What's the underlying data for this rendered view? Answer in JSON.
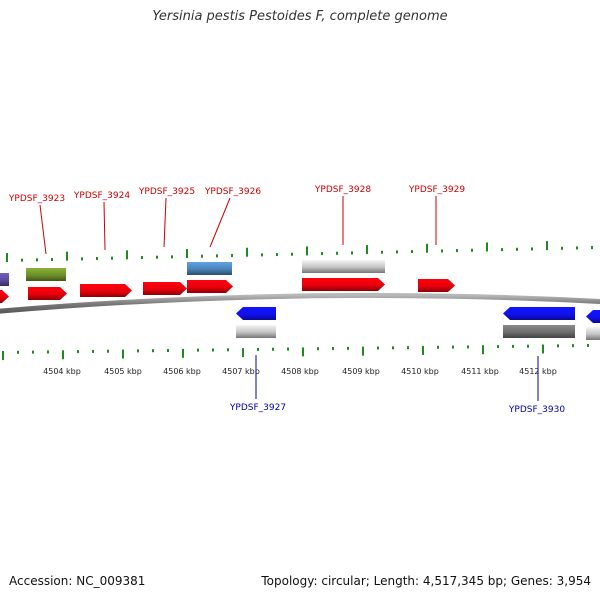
{
  "title": "Yersinia pestis Pestoides F, complete genome",
  "footer": {
    "accession": "Accession: NC_009381",
    "topology": "Topology: circular; Length: 4,517,345 bp; Genes: 3,954"
  },
  "colors": {
    "red_gene": "#e8000b",
    "blue_gene": "#1010ee",
    "gray_gene": "#c4c4c4",
    "dark_gray_gene": "#6e6e6e",
    "green_gene": "#6e8f2a",
    "steelblue_gene": "#4b82b8",
    "purple_gene": "#5b4a9e",
    "tick_green": "#1f8a1f",
    "top_label": "#cc0000",
    "bottom_label": "#0000aa",
    "backbone": "#8a8a8a"
  },
  "scale_labels": [
    "4504 kbp",
    "4505 kbp",
    "4506 kbp",
    "4507 kbp",
    "4508 kbp",
    "4509 kbp",
    "4510 kbp",
    "4511 kbp",
    "4512 kbp"
  ],
  "top_genes": [
    "YPDSF_3923",
    "YPDSF_3924",
    "YPDSF_3925",
    "YPDSF_3926",
    "YPDSF_3928",
    "YPDSF_3929"
  ],
  "bottom_genes": [
    "YPDSF_3927",
    "YPDSF_3930"
  ]
}
